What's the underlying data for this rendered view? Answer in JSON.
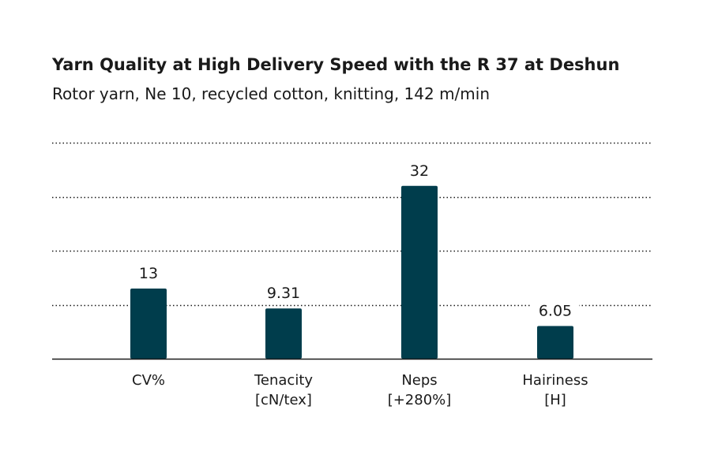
{
  "chart_data": {
    "type": "bar",
    "title": "Yarn Quality at High Delivery Speed with the R 37 at Deshun",
    "subtitle": "Rotor yarn, Ne 10, recycled cotton, knitting, 142 m/min",
    "categories": [
      [
        "CV%"
      ],
      [
        "Tenacity",
        "[cN/tex]"
      ],
      [
        "Neps",
        "[+280%]"
      ],
      [
        "Hairiness",
        "[H]"
      ]
    ],
    "values": [
      13,
      9.31,
      32,
      6.05
    ],
    "value_labels": [
      "13",
      "9.31",
      "32",
      "6.05"
    ],
    "ylim": [
      0,
      40
    ],
    "gridlines": [
      10,
      20,
      30,
      40
    ],
    "grid": "dotted horizontal",
    "bar_color": "#003d4c",
    "xlabel": "",
    "ylabel": ""
  }
}
